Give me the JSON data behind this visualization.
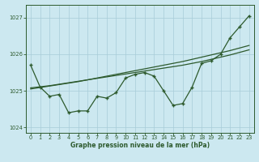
{
  "xlabel": "Graphe pression niveau de la mer (hPa)",
  "background_color": "#cce8f0",
  "grid_color": "#a8ccd8",
  "line_color": "#2d5a2d",
  "hours": [
    0,
    1,
    2,
    3,
    4,
    5,
    6,
    7,
    8,
    9,
    10,
    11,
    12,
    13,
    14,
    15,
    16,
    17,
    18,
    19,
    20,
    21,
    22,
    23
  ],
  "pressure": [
    1025.7,
    1025.1,
    1024.85,
    1024.9,
    1024.4,
    1024.45,
    1024.45,
    1024.85,
    1024.8,
    1024.95,
    1025.35,
    1025.45,
    1025.5,
    1025.4,
    1025.0,
    1024.6,
    1024.65,
    1025.1,
    1025.75,
    1025.82,
    1026.0,
    1026.45,
    1026.75,
    1027.05
  ],
  "smooth1": [
    1025.08,
    1025.11,
    1025.14,
    1025.18,
    1025.22,
    1025.26,
    1025.3,
    1025.34,
    1025.38,
    1025.42,
    1025.46,
    1025.5,
    1025.54,
    1025.58,
    1025.62,
    1025.66,
    1025.7,
    1025.75,
    1025.8,
    1025.86,
    1025.92,
    1025.98,
    1026.05,
    1026.12
  ],
  "smooth2": [
    1025.05,
    1025.09,
    1025.13,
    1025.17,
    1025.21,
    1025.25,
    1025.3,
    1025.35,
    1025.4,
    1025.45,
    1025.5,
    1025.55,
    1025.6,
    1025.65,
    1025.7,
    1025.75,
    1025.8,
    1025.86,
    1025.92,
    1025.98,
    1026.04,
    1026.1,
    1026.17,
    1026.24
  ],
  "ylim": [
    1023.85,
    1027.35
  ],
  "yticks": [
    1024,
    1025,
    1026,
    1027
  ],
  "xticks": [
    0,
    1,
    2,
    3,
    4,
    5,
    6,
    7,
    8,
    9,
    10,
    11,
    12,
    13,
    14,
    15,
    16,
    17,
    18,
    19,
    20,
    21,
    22,
    23
  ]
}
